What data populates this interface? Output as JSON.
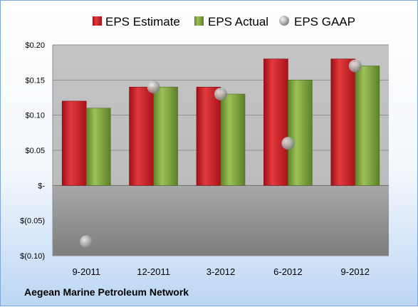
{
  "chart_data": {
    "type": "bar",
    "title": "",
    "xlabel": "",
    "ylabel": "",
    "categories": [
      "9-2011",
      "12-2011",
      "3-2012",
      "6-2012",
      "9-2012"
    ],
    "series": [
      {
        "name": "EPS Estimate",
        "kind": "bar",
        "color": "#c8161d",
        "values": [
          0.12,
          0.14,
          0.14,
          0.18,
          0.18
        ]
      },
      {
        "name": "EPS Actual",
        "kind": "bar",
        "color": "#7fa63c",
        "values": [
          0.11,
          0.14,
          0.13,
          0.15,
          0.17
        ]
      },
      {
        "name": "EPS GAAP",
        "kind": "scatter",
        "color": "#b8b8b8",
        "values": [
          -0.08,
          0.14,
          0.13,
          0.06,
          0.17
        ]
      }
    ],
    "ylim": [
      -0.1,
      0.2
    ],
    "yticks": [
      0.2,
      0.15,
      0.1,
      0.05,
      0,
      -0.05,
      -0.1
    ],
    "ytick_labels": [
      "$0.20",
      "$0.15",
      "$0.10",
      "$0.05",
      "$-",
      "$(0.05)",
      "$(0.10)"
    ],
    "grid": true,
    "legend_position": "top"
  },
  "footer": {
    "company": "Aegean Marine Petroleum Network"
  }
}
